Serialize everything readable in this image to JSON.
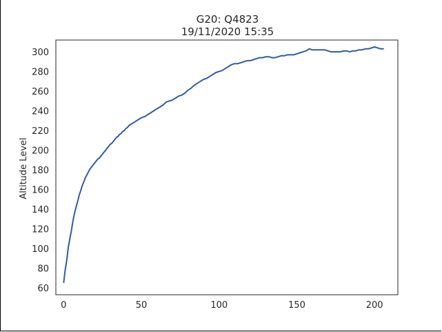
{
  "chart_data": {
    "type": "line",
    "title": "G20: Q4823",
    "subtitle": "19/11/2020 15:35",
    "xlabel": "",
    "ylabel": "Altitude Level",
    "xlim": [
      -5,
      215
    ],
    "ylim": [
      53,
      312
    ],
    "xticks": [
      0,
      50,
      100,
      150,
      200
    ],
    "yticks": [
      60,
      80,
      100,
      120,
      140,
      160,
      180,
      200,
      220,
      240,
      260,
      280,
      300
    ],
    "grid": false,
    "line_color": "#2b5ca8",
    "series": [
      {
        "points": [
          [
            0,
            65
          ],
          [
            1,
            78
          ],
          [
            2,
            88
          ],
          [
            3,
            101
          ],
          [
            4,
            110
          ],
          [
            5,
            118
          ],
          [
            6,
            128
          ],
          [
            7,
            136
          ],
          [
            8,
            142
          ],
          [
            9,
            148
          ],
          [
            10,
            154
          ],
          [
            11,
            159
          ],
          [
            12,
            164
          ],
          [
            13,
            168
          ],
          [
            14,
            172
          ],
          [
            15,
            175
          ],
          [
            16,
            178
          ],
          [
            17,
            181
          ],
          [
            18,
            183
          ],
          [
            19,
            185
          ],
          [
            20,
            187
          ],
          [
            21,
            189
          ],
          [
            22,
            191
          ],
          [
            23,
            192
          ],
          [
            24,
            194
          ],
          [
            25,
            196
          ],
          [
            26,
            198
          ],
          [
            27,
            200
          ],
          [
            28,
            202
          ],
          [
            29,
            204
          ],
          [
            30,
            206
          ],
          [
            31,
            207
          ],
          [
            32,
            209
          ],
          [
            33,
            211
          ],
          [
            34,
            213
          ],
          [
            35,
            214
          ],
          [
            36,
            216
          ],
          [
            37,
            217
          ],
          [
            38,
            219
          ],
          [
            39,
            220
          ],
          [
            40,
            222
          ],
          [
            41,
            223
          ],
          [
            42,
            225
          ],
          [
            43,
            226
          ],
          [
            44,
            227
          ],
          [
            45,
            228
          ],
          [
            46,
            229
          ],
          [
            47,
            230
          ],
          [
            48,
            231
          ],
          [
            49,
            232
          ],
          [
            50,
            233
          ],
          [
            52,
            234
          ],
          [
            54,
            236
          ],
          [
            56,
            238
          ],
          [
            58,
            240
          ],
          [
            60,
            242
          ],
          [
            62,
            244
          ],
          [
            64,
            246
          ],
          [
            66,
            249
          ],
          [
            68,
            250
          ],
          [
            70,
            251
          ],
          [
            72,
            253
          ],
          [
            74,
            255
          ],
          [
            76,
            256
          ],
          [
            78,
            258
          ],
          [
            80,
            261
          ],
          [
            82,
            263
          ],
          [
            84,
            266
          ],
          [
            86,
            268
          ],
          [
            88,
            270
          ],
          [
            90,
            272
          ],
          [
            92,
            273
          ],
          [
            94,
            275
          ],
          [
            96,
            277
          ],
          [
            98,
            279
          ],
          [
            100,
            280
          ],
          [
            102,
            281
          ],
          [
            104,
            283
          ],
          [
            106,
            285
          ],
          [
            108,
            287
          ],
          [
            110,
            288
          ],
          [
            112,
            288
          ],
          [
            114,
            289
          ],
          [
            116,
            290
          ],
          [
            118,
            291
          ],
          [
            120,
            291
          ],
          [
            122,
            292
          ],
          [
            124,
            293
          ],
          [
            126,
            294
          ],
          [
            128,
            294
          ],
          [
            130,
            295
          ],
          [
            132,
            295
          ],
          [
            134,
            294
          ],
          [
            136,
            294
          ],
          [
            138,
            295
          ],
          [
            140,
            296
          ],
          [
            142,
            296
          ],
          [
            144,
            297
          ],
          [
            146,
            297
          ],
          [
            148,
            297
          ],
          [
            150,
            298
          ],
          [
            152,
            299
          ],
          [
            154,
            300
          ],
          [
            156,
            301
          ],
          [
            158,
            303
          ],
          [
            160,
            302
          ],
          [
            162,
            302
          ],
          [
            164,
            302
          ],
          [
            166,
            302
          ],
          [
            168,
            302
          ],
          [
            170,
            301
          ],
          [
            172,
            300
          ],
          [
            174,
            300
          ],
          [
            176,
            300
          ],
          [
            178,
            300
          ],
          [
            180,
            301
          ],
          [
            182,
            301
          ],
          [
            184,
            300
          ],
          [
            186,
            301
          ],
          [
            188,
            301
          ],
          [
            190,
            302
          ],
          [
            192,
            302
          ],
          [
            194,
            303
          ],
          [
            196,
            303
          ],
          [
            198,
            304
          ],
          [
            200,
            305
          ],
          [
            202,
            304
          ],
          [
            204,
            303
          ],
          [
            206,
            303
          ]
        ]
      }
    ]
  }
}
